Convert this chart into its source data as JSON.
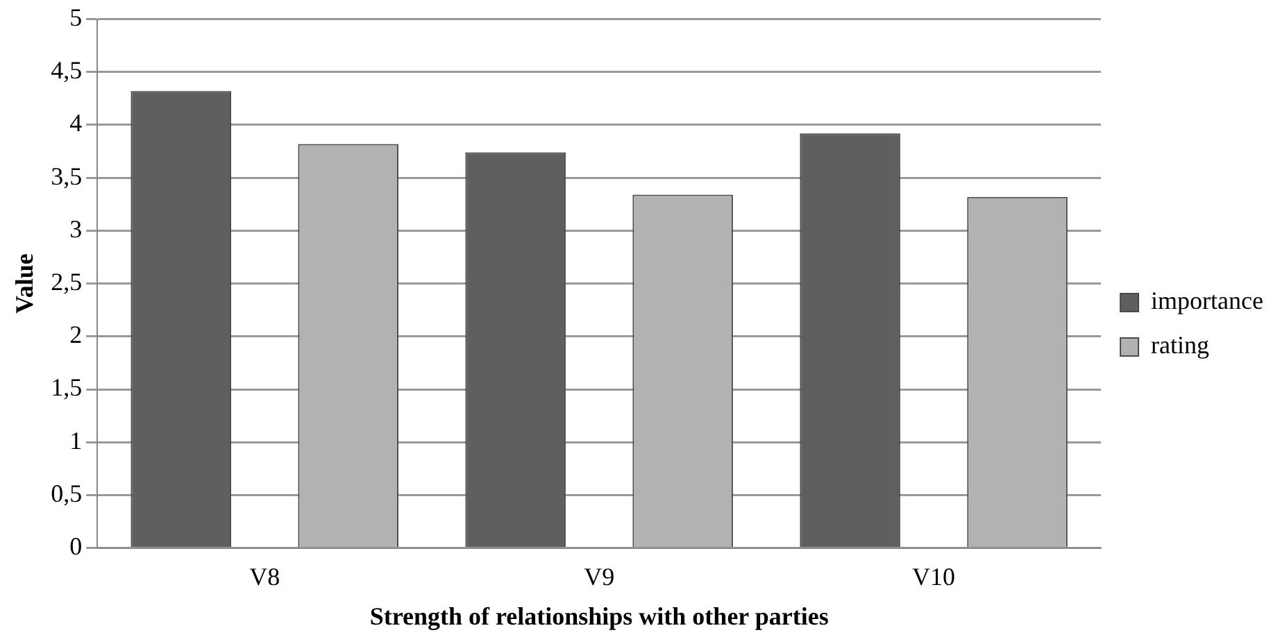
{
  "chart_data": {
    "type": "bar",
    "xlabel": "Strength of relationships with other parties",
    "ylabel": "Value",
    "categories": [
      "V8",
      "V9",
      "V10"
    ],
    "series": [
      {
        "name": "importance",
        "color": "#5f5f5f",
        "values": [
          4.32,
          3.74,
          3.92
        ]
      },
      {
        "name": "rating",
        "color": "#b2b2b2",
        "values": [
          3.82,
          3.34,
          3.32
        ]
      }
    ],
    "ylim": [
      0,
      5
    ],
    "yticks": [
      0,
      {
        "value": 0.5,
        "label": "0,5"
      },
      1,
      {
        "value": 1.5,
        "label": "1,5"
      },
      2,
      {
        "value": 2.5,
        "label": "2,5"
      },
      3,
      {
        "value": 3.5,
        "label": "3,5"
      },
      4,
      {
        "value": 4.5,
        "label": "4,5"
      },
      5
    ],
    "grid": "y",
    "legend": "right"
  }
}
